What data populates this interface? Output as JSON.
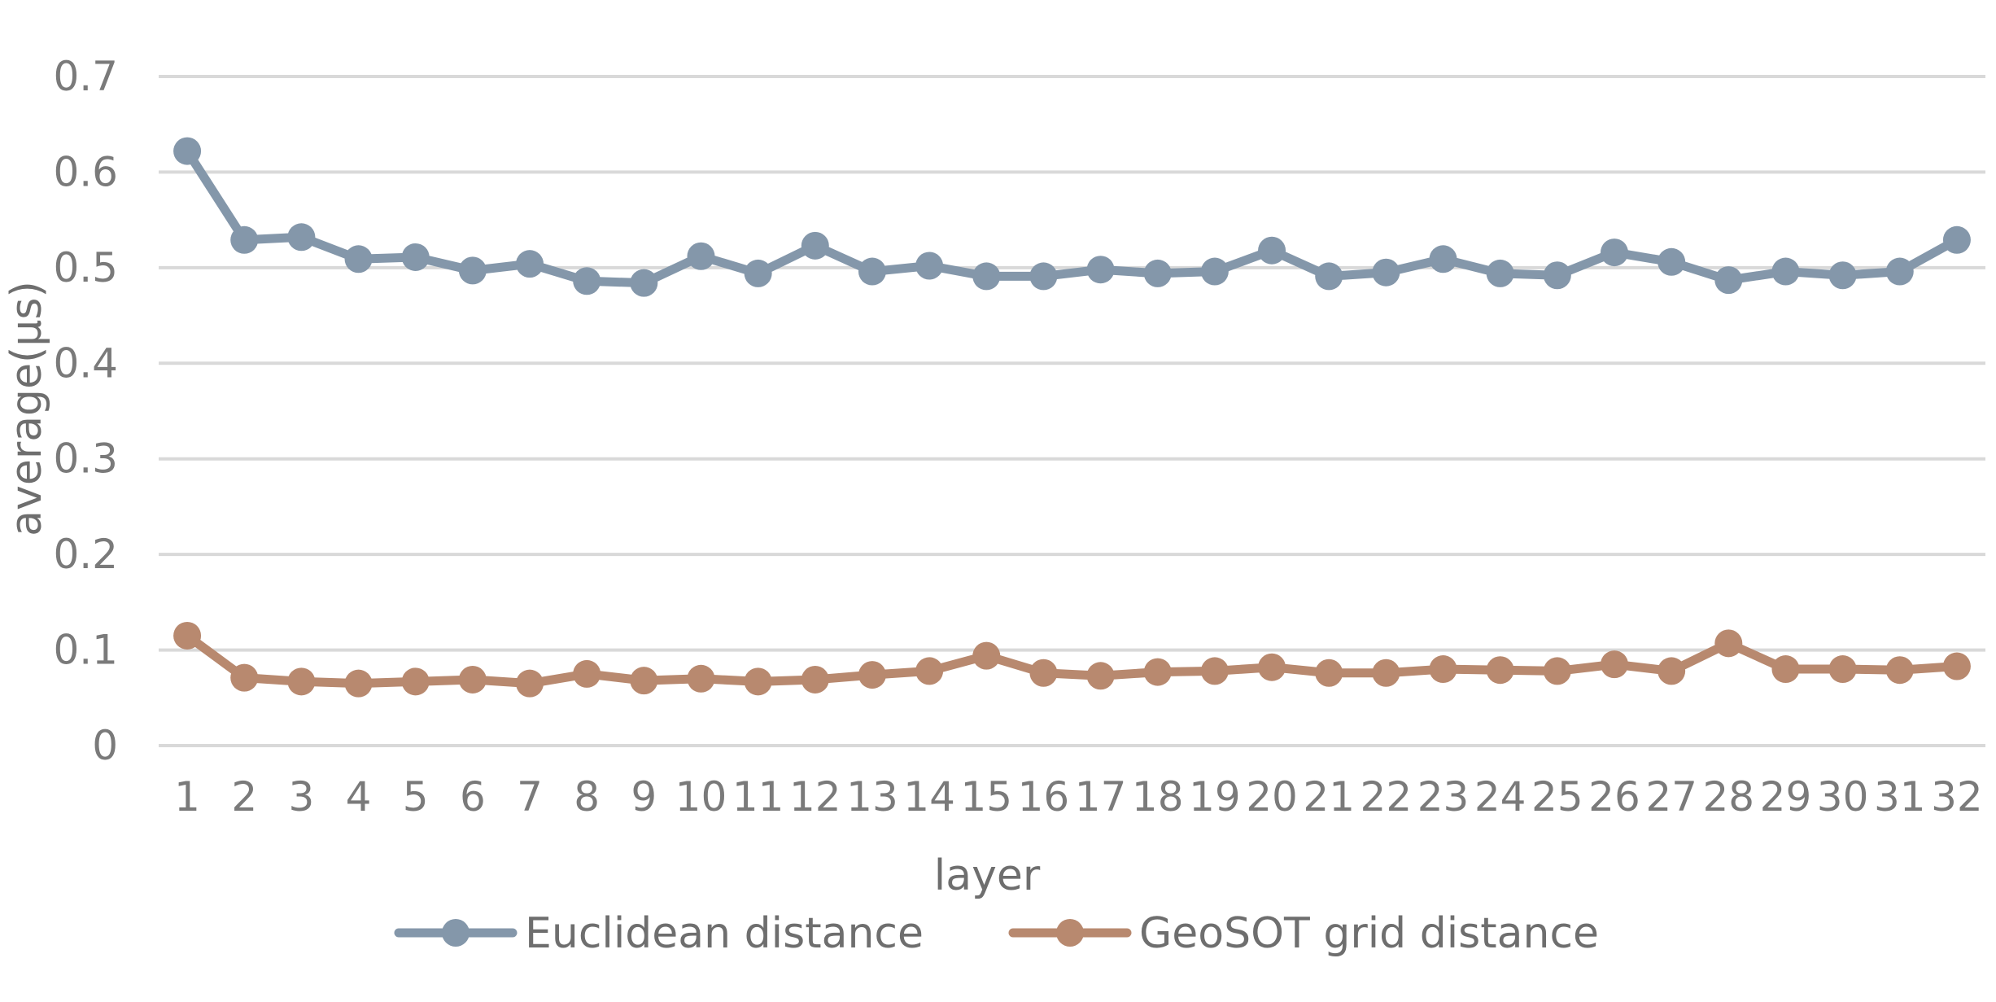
{
  "chart_data": {
    "type": "line",
    "title": "",
    "xlabel": "layer",
    "ylabel": "average(μs)",
    "categories": [
      "1",
      "2",
      "3",
      "4",
      "5",
      "6",
      "7",
      "8",
      "9",
      "10",
      "11",
      "12",
      "13",
      "14",
      "15",
      "16",
      "17",
      "18",
      "19",
      "20",
      "21",
      "22",
      "23",
      "24",
      "25",
      "26",
      "27",
      "28",
      "29",
      "30",
      "31",
      "32"
    ],
    "ylim": [
      0,
      0.7
    ],
    "yticks": [
      "0",
      "0.1",
      "0.2",
      "0.3",
      "0.4",
      "0.5",
      "0.6",
      "0.7"
    ],
    "grid": true,
    "legend_position": "bottom",
    "series": [
      {
        "name": "Euclidean distance",
        "color": "#8497aa",
        "values": [
          0.622,
          0.529,
          0.532,
          0.509,
          0.511,
          0.497,
          0.504,
          0.486,
          0.484,
          0.512,
          0.494,
          0.523,
          0.496,
          0.502,
          0.491,
          0.491,
          0.498,
          0.494,
          0.496,
          0.518,
          0.491,
          0.495,
          0.509,
          0.494,
          0.492,
          0.516,
          0.506,
          0.487,
          0.496,
          0.492,
          0.496,
          0.529
        ]
      },
      {
        "name": "GeoSOT grid distance",
        "color": "#b8896f",
        "values": [
          0.115,
          0.071,
          0.067,
          0.065,
          0.067,
          0.069,
          0.065,
          0.075,
          0.068,
          0.07,
          0.067,
          0.069,
          0.074,
          0.078,
          0.094,
          0.076,
          0.073,
          0.077,
          0.078,
          0.082,
          0.076,
          0.076,
          0.08,
          0.079,
          0.078,
          0.085,
          0.078,
          0.107,
          0.08,
          0.08,
          0.079,
          0.083
        ]
      }
    ]
  }
}
